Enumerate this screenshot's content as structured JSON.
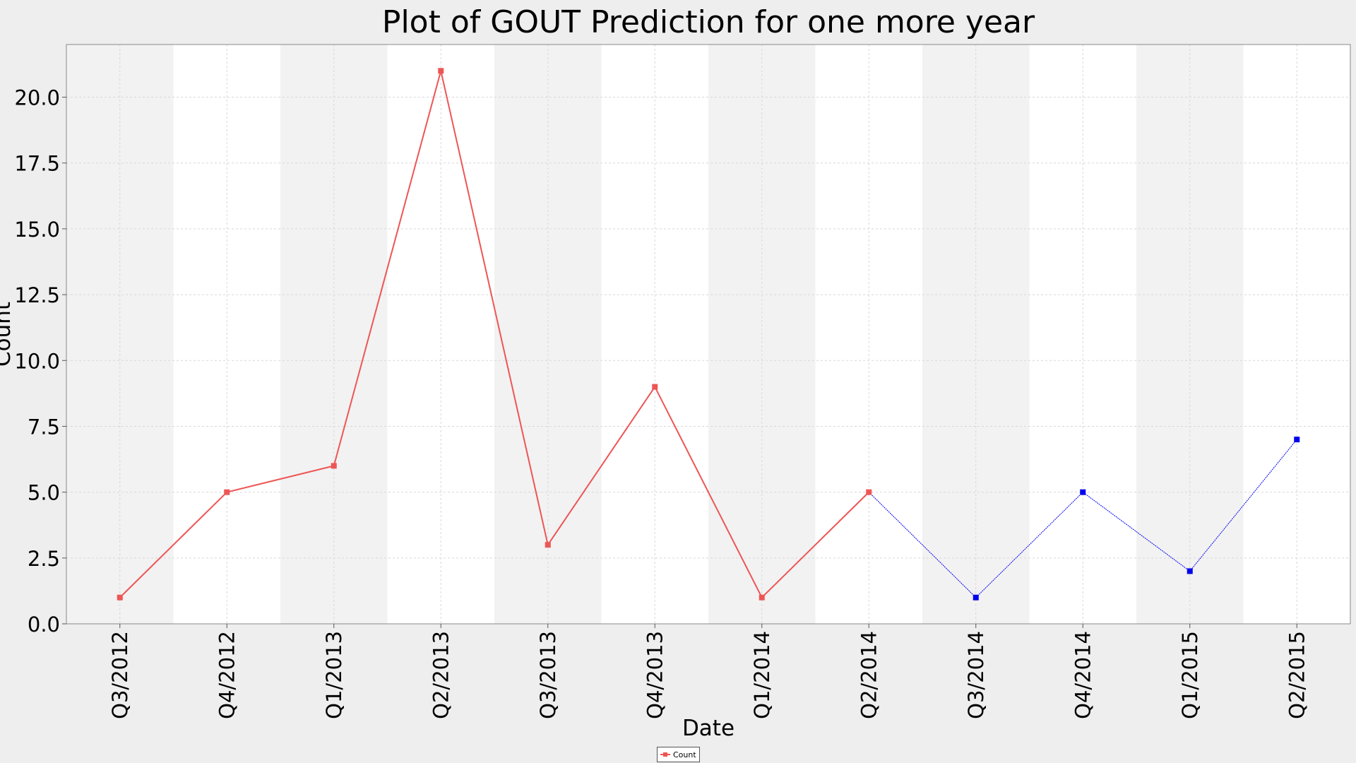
{
  "chart_data": {
    "type": "line",
    "title": "Plot of GOUT Prediction for one more year",
    "xlabel": "Date",
    "ylabel": "Count",
    "categories": [
      "Q3/2012",
      "Q4/2012",
      "Q1/2013",
      "Q2/2013",
      "Q3/2013",
      "Q4/2013",
      "Q1/2014",
      "Q2/2014",
      "Q3/2014",
      "Q4/2014",
      "Q1/2015",
      "Q2/2015"
    ],
    "ylim": [
      0,
      22
    ],
    "yticks": [
      "0.0",
      "2.5",
      "5.0",
      "7.5",
      "10.0",
      "12.5",
      "15.0",
      "17.5",
      "20.0"
    ],
    "grid": true,
    "legend_position": "bottom-center",
    "series": [
      {
        "name": "Count",
        "color": "#ee5555",
        "points": [
          {
            "x": "Q3/2012",
            "y": 1
          },
          {
            "x": "Q4/2012",
            "y": 5
          },
          {
            "x": "Q1/2013",
            "y": 6
          },
          {
            "x": "Q2/2013",
            "y": 21
          },
          {
            "x": "Q3/2013",
            "y": 3
          },
          {
            "x": "Q4/2013",
            "y": 9
          },
          {
            "x": "Q1/2014",
            "y": 1
          },
          {
            "x": "Q2/2014",
            "y": 5
          }
        ]
      },
      {
        "color": "#0000ee",
        "points": [
          {
            "x": "Q2/2014",
            "y": 5
          },
          {
            "x": "Q3/2014",
            "y": 1
          },
          {
            "x": "Q4/2014",
            "y": 5
          },
          {
            "x": "Q1/2015",
            "y": 2
          },
          {
            "x": "Q2/2015",
            "y": 7
          }
        ]
      }
    ]
  },
  "legend": {
    "label": "Count"
  }
}
